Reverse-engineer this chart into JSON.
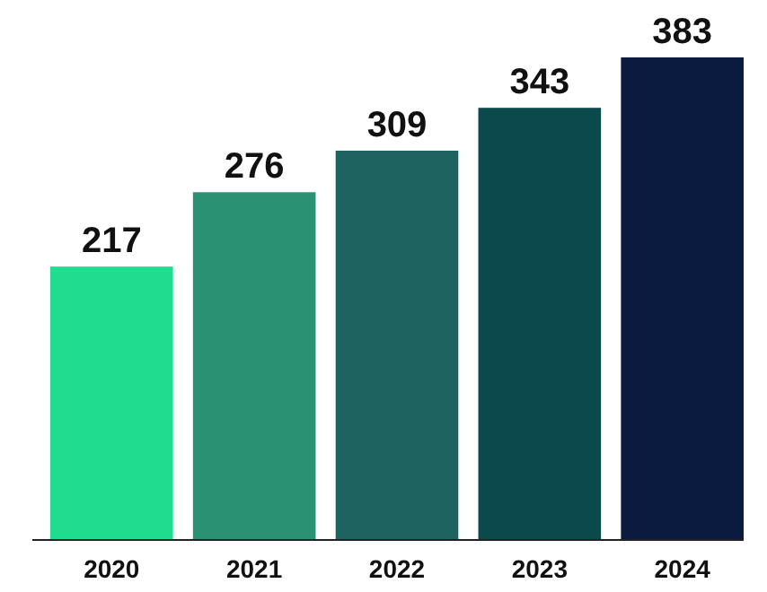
{
  "chart_data": {
    "type": "bar",
    "categories": [
      "2020",
      "2021",
      "2022",
      "2023",
      "2024"
    ],
    "values": [
      217,
      276,
      309,
      343,
      383
    ],
    "colors": [
      "#1fdc8f",
      "#2a9173",
      "#1f6361",
      "#0a4a4d",
      "#0b1b40"
    ],
    "data_labels": true
  }
}
